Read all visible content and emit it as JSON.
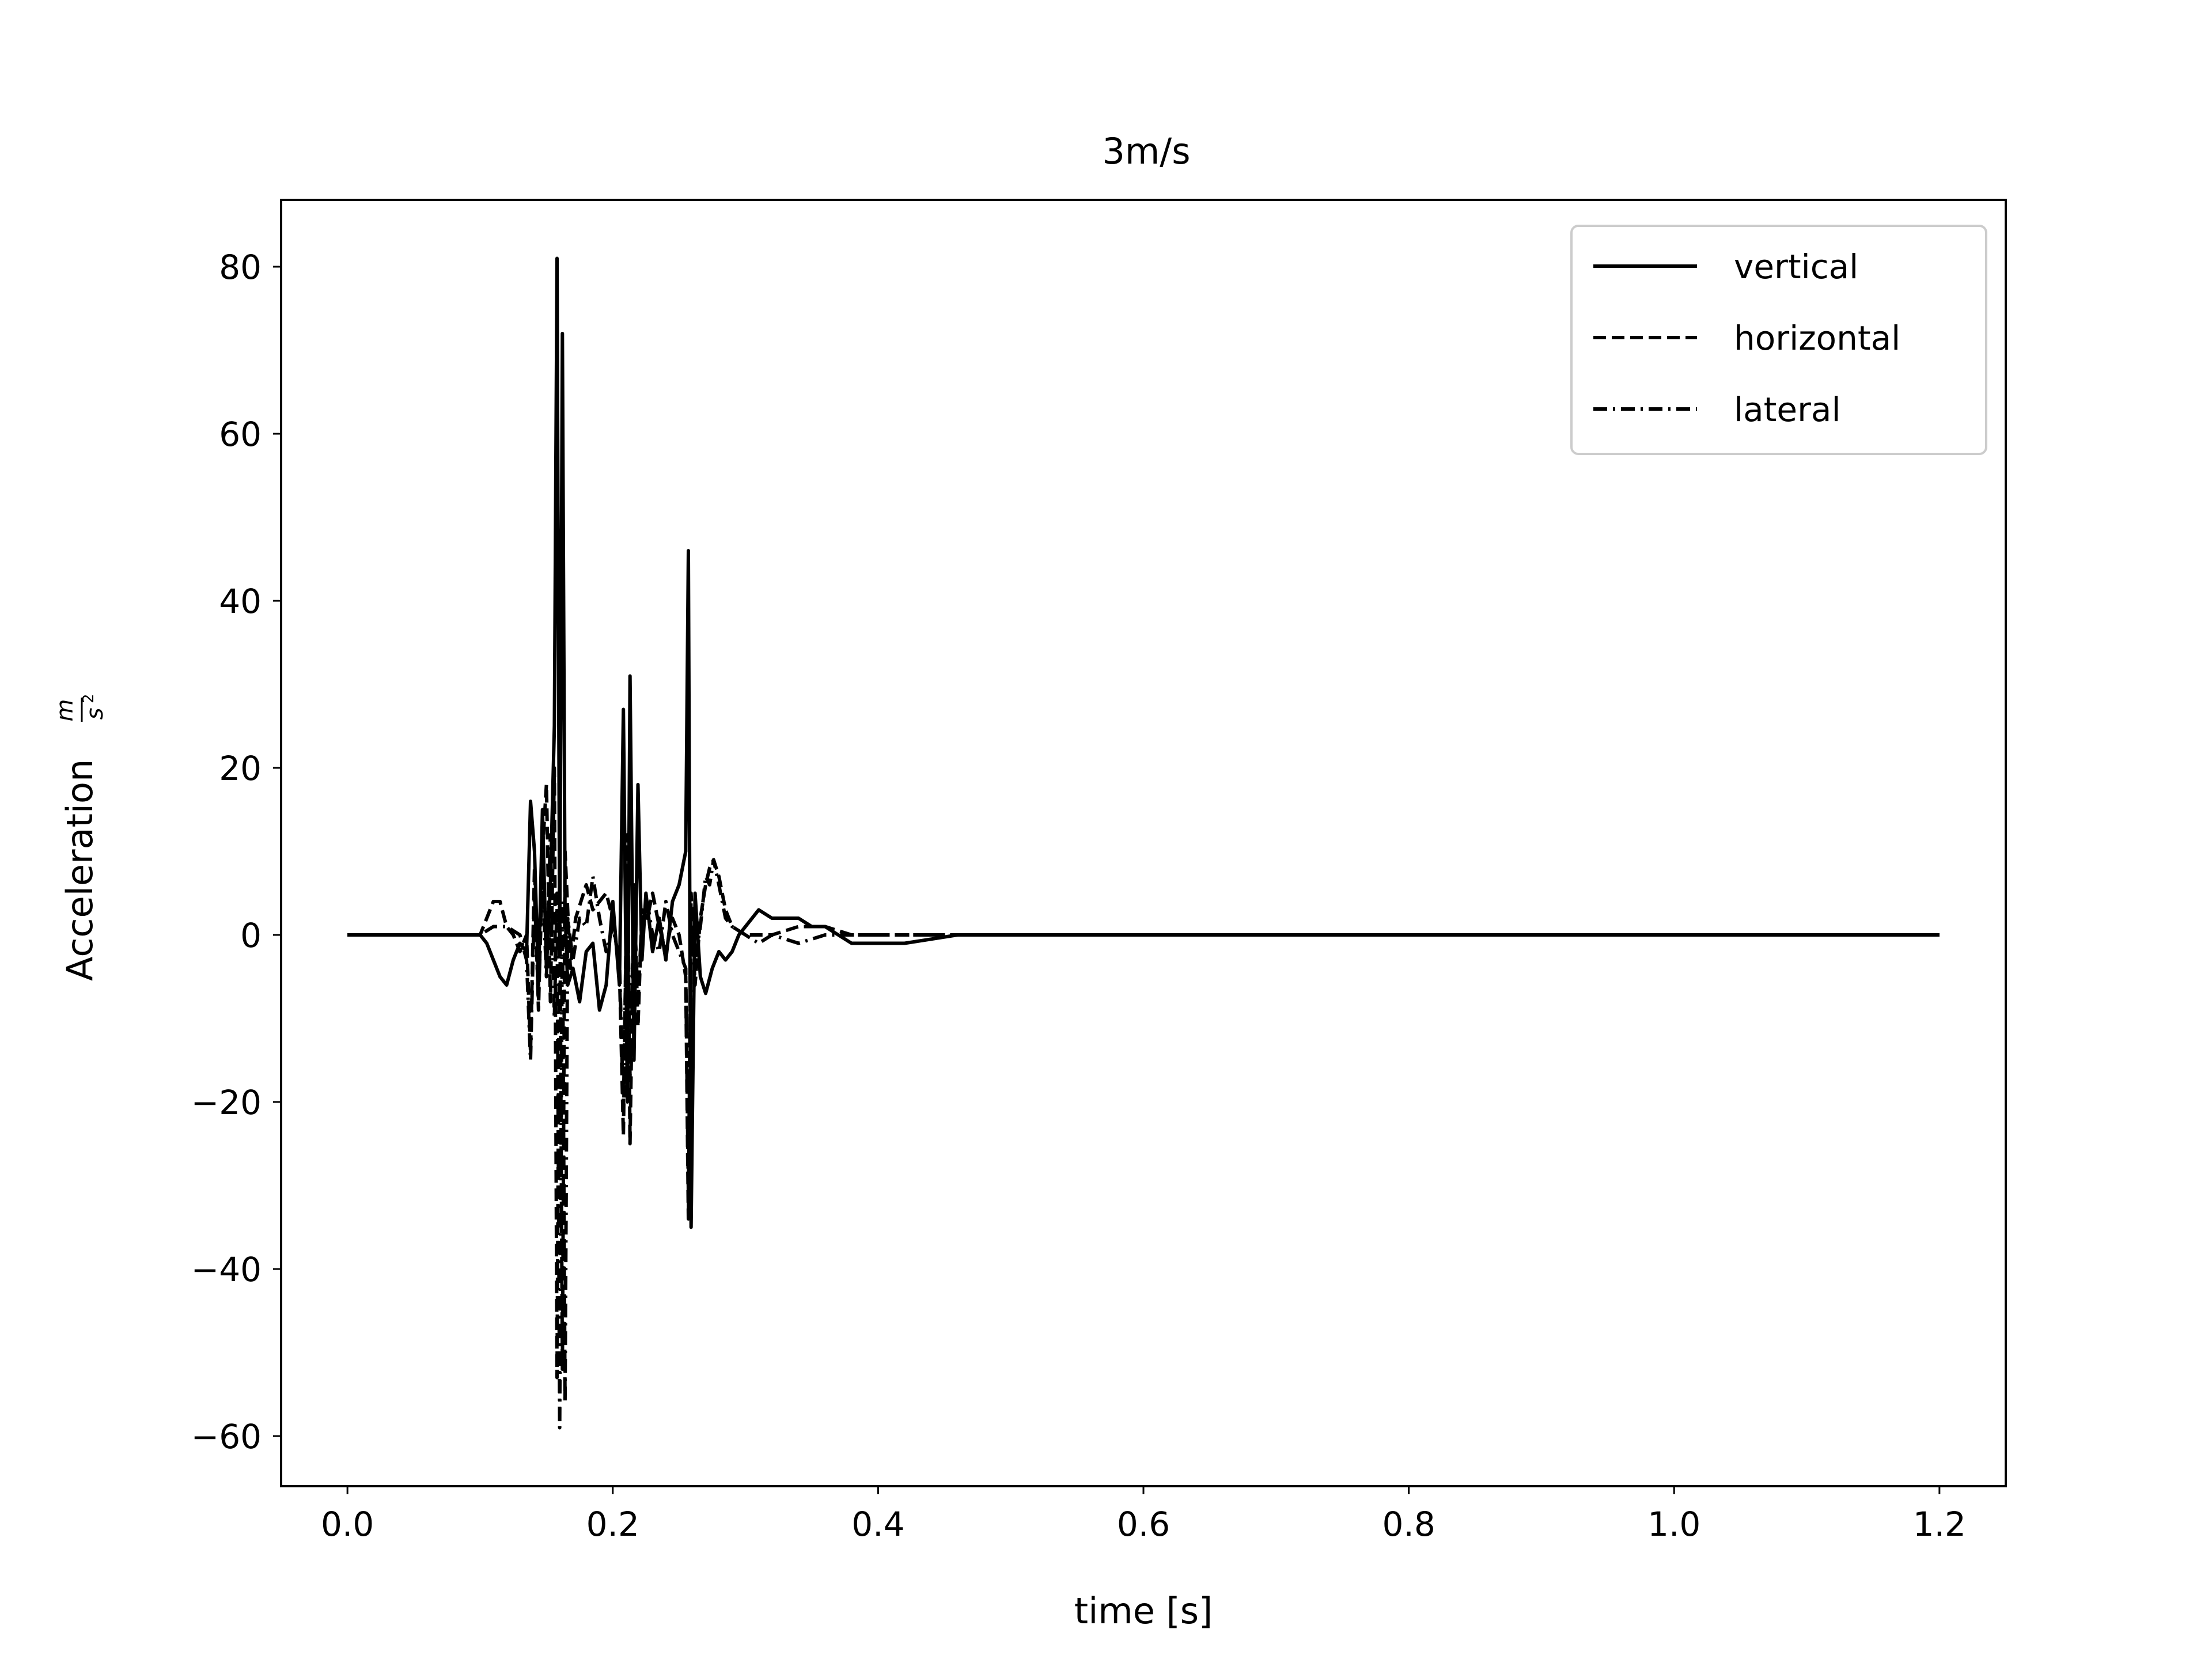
{
  "chart_data": {
    "type": "line",
    "title": "3m/s",
    "xlabel": "time [s]",
    "ylabel": "Acceleration",
    "ylabel_unit_numerator": "m",
    "ylabel_unit_denominator": "s",
    "ylabel_unit_exponent": "2",
    "xlim": [
      -0.05,
      1.25
    ],
    "ylim": [
      -66,
      88
    ],
    "x_ticks": [
      0.0,
      0.2,
      0.4,
      0.6,
      0.8,
      1.0,
      1.2
    ],
    "x_tick_labels": [
      "0.0",
      "0.2",
      "0.4",
      "0.6",
      "0.8",
      "1.0",
      "1.2"
    ],
    "y_ticks": [
      80,
      60,
      40,
      20,
      0,
      -20,
      -40,
      -60
    ],
    "y_tick_labels": [
      "80",
      "60",
      "40",
      "20",
      "0",
      "−20",
      "−40",
      "−60"
    ],
    "grid": false,
    "legend_position": "top-right",
    "series": [
      {
        "name": "vertical",
        "line_style": "solid",
        "color": "#000000",
        "points": [
          [
            0,
            0
          ],
          [
            0.05,
            0
          ],
          [
            0.1,
            0
          ],
          [
            0.105,
            -1
          ],
          [
            0.11,
            -3
          ],
          [
            0.115,
            -5
          ],
          [
            0.12,
            -6
          ],
          [
            0.125,
            -3
          ],
          [
            0.13,
            -1
          ],
          [
            0.135,
            -2
          ],
          [
            0.138,
            16
          ],
          [
            0.141,
            10
          ],
          [
            0.144,
            -6
          ],
          [
            0.147,
            15
          ],
          [
            0.15,
            -4
          ],
          [
            0.153,
            6
          ],
          [
            0.156,
            25
          ],
          [
            0.158,
            81
          ],
          [
            0.16,
            -2
          ],
          [
            0.162,
            72
          ],
          [
            0.164,
            3
          ],
          [
            0.166,
            -6
          ],
          [
            0.17,
            -4
          ],
          [
            0.175,
            -8
          ],
          [
            0.18,
            -2
          ],
          [
            0.185,
            -1
          ],
          [
            0.19,
            -9
          ],
          [
            0.195,
            -6
          ],
          [
            0.2,
            4
          ],
          [
            0.205,
            -6
          ],
          [
            0.208,
            27
          ],
          [
            0.211,
            -20
          ],
          [
            0.213,
            31
          ],
          [
            0.216,
            -15
          ],
          [
            0.219,
            18
          ],
          [
            0.222,
            -3
          ],
          [
            0.225,
            5
          ],
          [
            0.23,
            -2
          ],
          [
            0.235,
            2
          ],
          [
            0.24,
            -3
          ],
          [
            0.245,
            4
          ],
          [
            0.25,
            6
          ],
          [
            0.255,
            10
          ],
          [
            0.257,
            46
          ],
          [
            0.259,
            -35
          ],
          [
            0.262,
            5
          ],
          [
            0.266,
            -5
          ],
          [
            0.27,
            -7
          ],
          [
            0.275,
            -4
          ],
          [
            0.28,
            -2
          ],
          [
            0.285,
            -3
          ],
          [
            0.29,
            -2
          ],
          [
            0.295,
            0
          ],
          [
            0.3,
            1
          ],
          [
            0.31,
            3
          ],
          [
            0.32,
            2
          ],
          [
            0.33,
            2
          ],
          [
            0.34,
            2
          ],
          [
            0.35,
            1
          ],
          [
            0.36,
            1
          ],
          [
            0.37,
            0
          ],
          [
            0.38,
            -1
          ],
          [
            0.4,
            -1
          ],
          [
            0.42,
            -1
          ],
          [
            0.44,
            -0.5
          ],
          [
            0.46,
            0
          ],
          [
            0.5,
            0
          ],
          [
            0.6,
            0
          ],
          [
            0.8,
            0
          ],
          [
            1.0,
            0
          ],
          [
            1.2,
            0
          ]
        ]
      },
      {
        "name": "horizontal",
        "line_style": "dashed",
        "color": "#000000",
        "points": [
          [
            0,
            0
          ],
          [
            0.1,
            0
          ],
          [
            0.105,
            2
          ],
          [
            0.11,
            4
          ],
          [
            0.115,
            4
          ],
          [
            0.12,
            1
          ],
          [
            0.125,
            0
          ],
          [
            0.13,
            -2
          ],
          [
            0.135,
            0
          ],
          [
            0.138,
            -14
          ],
          [
            0.141,
            8
          ],
          [
            0.144,
            -9
          ],
          [
            0.147,
            10
          ],
          [
            0.15,
            18
          ],
          [
            0.153,
            -8
          ],
          [
            0.156,
            20
          ],
          [
            0.158,
            -53
          ],
          [
            0.16,
            8
          ],
          [
            0.162,
            -52
          ],
          [
            0.164,
            10
          ],
          [
            0.168,
            -4
          ],
          [
            0.172,
            2
          ],
          [
            0.176,
            4
          ],
          [
            0.18,
            6
          ],
          [
            0.185,
            3
          ],
          [
            0.19,
            4
          ],
          [
            0.195,
            5
          ],
          [
            0.2,
            2
          ],
          [
            0.205,
            -4
          ],
          [
            0.208,
            -24
          ],
          [
            0.211,
            12
          ],
          [
            0.213,
            -25
          ],
          [
            0.216,
            6
          ],
          [
            0.219,
            -11
          ],
          [
            0.222,
            3
          ],
          [
            0.226,
            2
          ],
          [
            0.23,
            5
          ],
          [
            0.235,
            1
          ],
          [
            0.24,
            -2
          ],
          [
            0.245,
            2
          ],
          [
            0.25,
            0
          ],
          [
            0.255,
            -5
          ],
          [
            0.257,
            -34
          ],
          [
            0.259,
            5
          ],
          [
            0.262,
            -6
          ],
          [
            0.266,
            2
          ],
          [
            0.27,
            6
          ],
          [
            0.273,
            8
          ],
          [
            0.276,
            9
          ],
          [
            0.28,
            7
          ],
          [
            0.285,
            3
          ],
          [
            0.29,
            1
          ],
          [
            0.3,
            0
          ],
          [
            0.32,
            0
          ],
          [
            0.34,
            1
          ],
          [
            0.36,
            1
          ],
          [
            0.38,
            0
          ],
          [
            0.4,
            0
          ],
          [
            0.45,
            0
          ],
          [
            0.6,
            0
          ],
          [
            0.8,
            0
          ],
          [
            1.0,
            0
          ],
          [
            1.2,
            0
          ]
        ]
      },
      {
        "name": "lateral",
        "line_style": "dashdot",
        "color": "#000000",
        "points": [
          [
            0,
            0
          ],
          [
            0.1,
            0
          ],
          [
            0.11,
            1
          ],
          [
            0.12,
            1
          ],
          [
            0.13,
            0
          ],
          [
            0.135,
            -3
          ],
          [
            0.138,
            -15
          ],
          [
            0.141,
            5
          ],
          [
            0.144,
            -8
          ],
          [
            0.147,
            7
          ],
          [
            0.15,
            -5
          ],
          [
            0.153,
            12
          ],
          [
            0.156,
            -10
          ],
          [
            0.158,
            5
          ],
          [
            0.16,
            -59
          ],
          [
            0.162,
            4
          ],
          [
            0.164,
            -56
          ],
          [
            0.166,
            2
          ],
          [
            0.17,
            -3
          ],
          [
            0.175,
            2
          ],
          [
            0.18,
            1
          ],
          [
            0.185,
            7
          ],
          [
            0.19,
            2
          ],
          [
            0.195,
            -2
          ],
          [
            0.2,
            1
          ],
          [
            0.205,
            -3
          ],
          [
            0.208,
            -21
          ],
          [
            0.211,
            8
          ],
          [
            0.213,
            -17
          ],
          [
            0.216,
            4
          ],
          [
            0.219,
            -8
          ],
          [
            0.222,
            2
          ],
          [
            0.226,
            4
          ],
          [
            0.23,
            0
          ],
          [
            0.235,
            -2
          ],
          [
            0.24,
            4
          ],
          [
            0.245,
            0
          ],
          [
            0.25,
            -2
          ],
          [
            0.255,
            -4
          ],
          [
            0.257,
            -31
          ],
          [
            0.259,
            2
          ],
          [
            0.262,
            -3
          ],
          [
            0.266,
            1
          ],
          [
            0.27,
            7
          ],
          [
            0.273,
            6
          ],
          [
            0.276,
            9
          ],
          [
            0.28,
            6
          ],
          [
            0.285,
            2
          ],
          [
            0.29,
            1
          ],
          [
            0.3,
            0
          ],
          [
            0.31,
            -1
          ],
          [
            0.32,
            0
          ],
          [
            0.34,
            -1
          ],
          [
            0.36,
            0
          ],
          [
            0.38,
            0
          ],
          [
            0.4,
            0
          ],
          [
            0.5,
            0
          ],
          [
            0.7,
            0
          ],
          [
            0.9,
            0
          ],
          [
            1.2,
            0
          ]
        ]
      }
    ]
  }
}
